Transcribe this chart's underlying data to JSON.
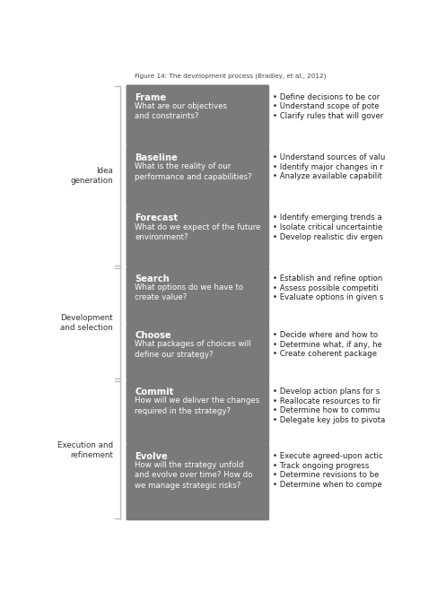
{
  "title": "Figure 14: The development process (Bradley, et al., 2012)",
  "fig_width": 4.87,
  "fig_height": 6.6,
  "bg_color": "#ffffff",
  "box_color": "#7a7a7a",
  "box_text_color": "#ffffff",
  "right_text_color": "#222222",
  "left_label_color": "#333333",
  "steps": [
    {
      "title": "Frame",
      "subtitle": "What are our objectives\nand constraints?",
      "bullets": [
        "Define decisions to be cor",
        "Understand scope of pote",
        "Clarify rules that will gover"
      ],
      "n_subtitle_lines": 2
    },
    {
      "title": "Baseline",
      "subtitle": "What is the reality of our\nperformance and capabilities?",
      "bullets": [
        "Understand sources of valu",
        "Identify major changes in r",
        "Analyze available capabilit"
      ],
      "n_subtitle_lines": 2
    },
    {
      "title": "Forecast",
      "subtitle": "What do we expect of the future\nenvironment?",
      "bullets": [
        "Identify emerging trends a",
        "Isolate critical uncertaintie",
        "Develop realistic div ergen"
      ],
      "n_subtitle_lines": 2
    },
    {
      "title": "Search",
      "subtitle": "What options do we have to\ncreate value?",
      "bullets": [
        "Establish and refine option",
        "Assess possible competiti",
        "Evaluate options in given s"
      ],
      "n_subtitle_lines": 2
    },
    {
      "title": "Choose",
      "subtitle": "What packages of choices will\ndefine our strategy?",
      "bullets": [
        "Decide where and how to",
        "Determine what, if any, he",
        "Create coherent package"
      ],
      "n_subtitle_lines": 2
    },
    {
      "title": "Commit",
      "subtitle": "How will we deliver the changes\nrequired in the strategy?",
      "bullets": [
        "Develop action plans for s",
        "Reallocate resources to fir",
        "Determine how to commu",
        "Delegate key jobs to pivota"
      ],
      "n_subtitle_lines": 2
    },
    {
      "title": "Evolve",
      "subtitle": "How will the strategy unfold\nand evolve over time? How do\nwe manage strategic risks?",
      "bullets": [
        "Execute agreed-upon actic",
        "Track ongoing progress",
        "Determine revisions to be",
        "Determine when to compe"
      ],
      "n_subtitle_lines": 3
    }
  ],
  "groups": [
    {
      "label": "Idea\ngeneration",
      "start": 0,
      "end": 2
    },
    {
      "label": "Development\nand selection",
      "start": 3,
      "end": 4
    },
    {
      "label": "Execution and\nrefinement",
      "start": 5,
      "end": 6
    }
  ]
}
